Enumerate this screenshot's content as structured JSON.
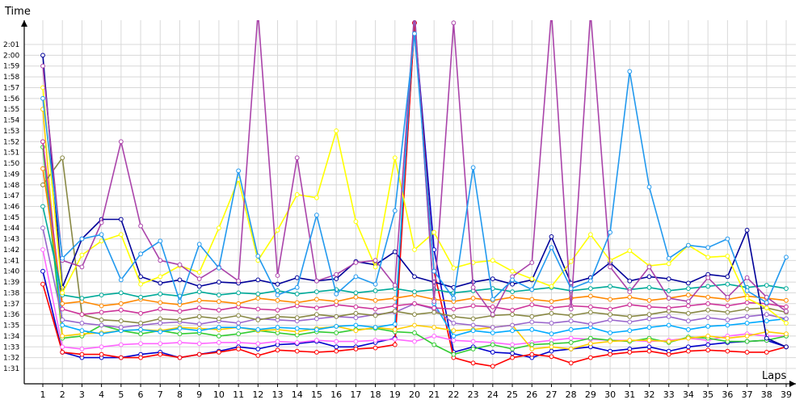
{
  "chart_data": {
    "type": "line",
    "title": "",
    "xlabel": "Laps",
    "ylabel": "Time",
    "x": [
      1,
      2,
      3,
      4,
      5,
      6,
      7,
      8,
      9,
      10,
      11,
      12,
      13,
      14,
      15,
      16,
      17,
      18,
      19,
      20,
      21,
      22,
      23,
      24,
      25,
      26,
      27,
      28,
      29,
      30,
      31,
      32,
      33,
      34,
      35,
      36,
      37,
      38,
      39
    ],
    "x_ticks": [
      "1",
      "2",
      "3",
      "4",
      "5",
      "6",
      "7",
      "8",
      "9",
      "10",
      "11",
      "12",
      "13",
      "14",
      "15",
      "16",
      "17",
      "18",
      "19",
      "20",
      "21",
      "22",
      "23",
      "24",
      "25",
      "26",
      "27",
      "28",
      "29",
      "30",
      "31",
      "32",
      "33",
      "34",
      "35",
      "36",
      "37",
      "38",
      "39"
    ],
    "y_unit": "seconds",
    "y_ticks": [
      "1:31",
      "1:32",
      "1:33",
      "1:34",
      "1:35",
      "1:36",
      "1:37",
      "1:38",
      "1:39",
      "1:40",
      "1:41",
      "1:42",
      "1:43",
      "1:44",
      "1:45",
      "1:46",
      "1:47",
      "1:48",
      "1:49",
      "1:50",
      "1:51",
      "1:52",
      "1:53",
      "1:54",
      "1:55",
      "1:56",
      "1:57",
      "1:58",
      "1:59",
      "2:00",
      "2:01"
    ],
    "y_tick_values": [
      91,
      92,
      93,
      94,
      95,
      96,
      97,
      98,
      99,
      100,
      101,
      102,
      103,
      104,
      105,
      106,
      107,
      108,
      109,
      110,
      111,
      112,
      113,
      114,
      115,
      116,
      117,
      118,
      119,
      120,
      121
    ],
    "ylim": [
      90,
      124
    ],
    "grid": true,
    "legend": "none",
    "series": [
      {
        "color": "#0000cc",
        "values": [
          100,
          92.5,
          92,
          92,
          92,
          92.3,
          92.5,
          92,
          92.3,
          92.6,
          93,
          92.8,
          93.2,
          93.3,
          93.5,
          93,
          93,
          93.4,
          93.8,
          123,
          102,
          92.5,
          93,
          92.5,
          92.4,
          92,
          92.6,
          92.8,
          93,
          92.6,
          92.8,
          93,
          92.6,
          93,
          93.2,
          93.4,
          93.5,
          93.6,
          93
        ]
      },
      {
        "color": "#ff0000",
        "values": [
          98.8,
          92.5,
          92.3,
          92.3,
          92,
          92,
          92.3,
          92,
          92.3,
          92.5,
          92.8,
          92.2,
          92.7,
          92.6,
          92.5,
          92.6,
          92.8,
          92.9,
          93.2,
          123,
          100,
          92,
          91.5,
          91.2,
          92,
          92.3,
          92.1,
          91.5,
          92,
          92.3,
          92.5,
          92.6,
          92.3,
          92.6,
          92.7,
          92.6,
          92.5,
          92.5,
          93
        ]
      },
      {
        "color": "#ff66ff",
        "values": [
          102,
          93,
          92.8,
          93,
          93.2,
          93.3,
          93.3,
          93.4,
          93.3,
          93.4,
          93.4,
          93.3,
          93.5,
          93.4,
          93.6,
          93.5,
          93.5,
          93.6,
          93.7,
          93.5,
          94,
          93.6,
          93.5,
          93.4,
          93.2,
          93.4,
          93.6,
          93.8,
          93.7,
          93.6,
          93.6,
          93.5,
          93.6,
          93.8,
          93.6,
          94,
          94.2,
          94,
          94
        ]
      },
      {
        "color": "#33cc33",
        "values": [
          111.5,
          93.8,
          94,
          95,
          94.5,
          94.2,
          94.5,
          94.2,
          94.3,
          94,
          94.2,
          94.5,
          94.3,
          94.1,
          94.4,
          94.3,
          94.6,
          94.7,
          94.4,
          94.3,
          93.2,
          92.3,
          92.8,
          93.2,
          92.8,
          93.2,
          93.3,
          93.4,
          93.8,
          93.6,
          93.5,
          93.8,
          93.4,
          93.9,
          93.8,
          93.5,
          93.5,
          93.6,
          94
        ]
      },
      {
        "color": "#ffcc00",
        "values": [
          115,
          94,
          94.2,
          94.3,
          94.5,
          94.6,
          94.5,
          94.8,
          94.7,
          94.6,
          94.8,
          94.5,
          94.6,
          94.4,
          94.7,
          94.9,
          94.5,
          94.8,
          94.6,
          95,
          94.8,
          94.5,
          94.6,
          94.8,
          95,
          92.8,
          93,
          92.8,
          93.3,
          93.5,
          93.6,
          93.6,
          93.5,
          93.8,
          94,
          93.8,
          94,
          94.4,
          94.2
        ]
      },
      {
        "color": "#00aaff",
        "values": [
          112,
          95,
          94.5,
          94.2,
          94.5,
          94.6,
          94.4,
          94.7,
          94.5,
          94.8,
          94.8,
          94.6,
          94.8,
          94.7,
          94.6,
          94.9,
          95,
          94.8,
          95.1,
          124,
          97,
          94,
          94.5,
          94.3,
          94.5,
          94.6,
          94.2,
          94.6,
          94.8,
          94.3,
          94.5,
          94.8,
          95,
          94.6,
          94.9,
          95,
          95.2,
          95.4,
          95.6
        ]
      },
      {
        "color": "#9966cc",
        "values": [
          104,
          95.5,
          95.2,
          95,
          94.8,
          95,
          95.2,
          95.3,
          95.1,
          95.4,
          95.2,
          95.6,
          95.5,
          95.4,
          95.6,
          95.8,
          95.7,
          96,
          96.2,
          97,
          96.5,
          95.2,
          95,
          94.8,
          95,
          95.3,
          95.2,
          95.4,
          95.1,
          95.5,
          95.3,
          95.6,
          95.8,
          95.4,
          95.7,
          95.5,
          95.8,
          96,
          95.6
        ]
      },
      {
        "color": "#888844",
        "values": [
          108,
          110.5,
          96,
          95.5,
          95.4,
          95.2,
          95.6,
          95.5,
          95.8,
          95.6,
          95.9,
          95.5,
          95.8,
          95.7,
          96,
          95.8,
          96.1,
          95.9,
          96.3,
          96,
          96.2,
          95.8,
          95.6,
          95.9,
          96,
          95.8,
          96.1,
          95.9,
          96.2,
          96,
          95.8,
          96,
          96.3,
          96.1,
          96.4,
          96.2,
          96.5,
          96.6,
          96.2
        ]
      },
      {
        "color": "#cc3399",
        "values": [
          112,
          96.5,
          96,
          96.2,
          96.4,
          96.1,
          96.5,
          96.3,
          96.6,
          96.4,
          96.7,
          96.5,
          96.4,
          96.8,
          96.6,
          96.9,
          96.7,
          96.5,
          96.8,
          97,
          96.6,
          96.5,
          96.8,
          96.7,
          96.4,
          96.9,
          96.6,
          96.8,
          96.7,
          96.5,
          96.9,
          96.7,
          96.6,
          96.8,
          97,
          96.8,
          97.1,
          97,
          96.7
        ]
      },
      {
        "color": "#ff8800",
        "values": [
          109.5,
          97,
          97.2,
          96.8,
          97,
          97.4,
          97.1,
          96.9,
          97.3,
          97.2,
          97,
          97.5,
          97.3,
          97.1,
          97.4,
          97.2,
          97.6,
          97.3,
          97.5,
          97.8,
          97.4,
          97.2,
          97.5,
          97.3,
          97.6,
          97.4,
          97.2,
          97.5,
          97.7,
          97.4,
          97.6,
          97.3,
          97.5,
          97.8,
          97.6,
          97.4,
          97.7,
          97.5,
          97.3
        ]
      },
      {
        "color": "#00aa99",
        "values": [
          106,
          97.8,
          97.5,
          97.8,
          98,
          97.6,
          97.9,
          97.7,
          98.1,
          97.8,
          98,
          97.9,
          98.2,
          97.9,
          98.1,
          98.3,
          98,
          98.2,
          98.4,
          98.1,
          98.3,
          98,
          98.2,
          98.4,
          98.1,
          98.3,
          98.5,
          98.2,
          98.4,
          98.6,
          98.3,
          98.5,
          98.2,
          98.4,
          98.6,
          98.8,
          98.5,
          98.7,
          98.4
        ]
      },
      {
        "color": "#000099",
        "values": [
          120,
          98.5,
          103,
          104.8,
          104.8,
          99.5,
          98.9,
          99.2,
          98.6,
          99,
          98.9,
          99.2,
          98.8,
          99.4,
          99.1,
          99.3,
          100.9,
          100.6,
          101.8,
          99.5,
          99,
          98.5,
          99,
          99.3,
          98.8,
          99.2,
          103.2,
          98.9,
          99.4,
          100.8,
          99.1,
          99.5,
          99.3,
          98.9,
          99.7,
          99.5,
          103.8,
          93.8,
          93
        ]
      },
      {
        "color": "#ffff00",
        "values": [
          117,
          98,
          101.5,
          102.8,
          103.4,
          98.8,
          99.5,
          100.5,
          99.9,
          104,
          108.5,
          101,
          103.8,
          107.1,
          106.8,
          113,
          104.6,
          100.4,
          110.5,
          102,
          103.6,
          100.3,
          100.8,
          101,
          100,
          99.3,
          98.6,
          100.9,
          103.4,
          101,
          101.9,
          100.5,
          100.7,
          102.4,
          101.3,
          101.4,
          97.5,
          96.6,
          95.2
        ]
      },
      {
        "color": "#aa44aa",
        "values": [
          119,
          101,
          100.4,
          104.5,
          112,
          104.2,
          101,
          100.6,
          99.3,
          100.4,
          99.1,
          124,
          99.6,
          110.5,
          99.1,
          99.7,
          100.8,
          101,
          98.7,
          124,
          97.2,
          123,
          98.5,
          96,
          99.5,
          100.8,
          124,
          96.5,
          124,
          100.4,
          98.1,
          100.4,
          97.5,
          97.2,
          99.4,
          97.6,
          99.4,
          97.6,
          96.3
        ]
      },
      {
        "color": "#2299ee",
        "values": [
          116,
          101.2,
          103,
          103.4,
          99.2,
          101.6,
          102.8,
          97.2,
          102.5,
          100.3,
          109.3,
          101.4,
          97.8,
          98.5,
          105.2,
          97.9,
          99.5,
          98.8,
          105.6,
          122,
          100,
          97.5,
          109.6,
          97.4,
          99.2,
          98.3,
          102.2,
          98.4,
          99.1,
          103.6,
          118.5,
          107.8,
          101.2,
          102.4,
          102.2,
          103,
          98.2,
          97.1,
          101.3
        ]
      }
    ]
  }
}
